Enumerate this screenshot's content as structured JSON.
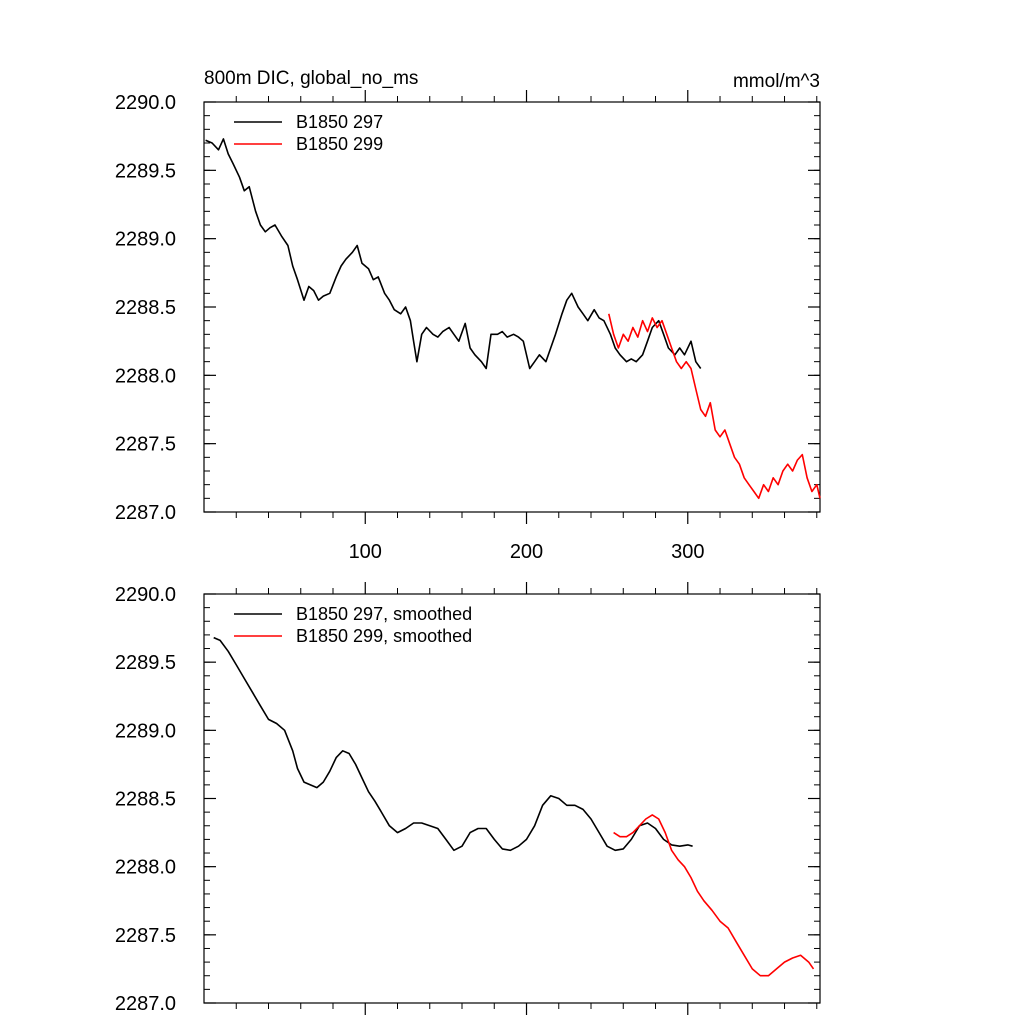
{
  "header": {
    "title": "800m DIC, global_no_ms",
    "units": "mmol/m^3"
  },
  "colors": {
    "run_297": "#000000",
    "run_299": "#ff0000"
  },
  "chart_data": [
    {
      "type": "line",
      "title": "800m DIC, global_no_ms",
      "units": "mmol/m^3",
      "xlabel": "",
      "ylabel": "",
      "xlim": [
        0,
        382
      ],
      "ylim": [
        2287.0,
        2290.0
      ],
      "x_ticks": [
        100,
        200,
        300
      ],
      "x_tick_labels": [
        "100",
        "200",
        "300"
      ],
      "y_ticks": [
        2287.0,
        2287.5,
        2288.0,
        2288.5,
        2289.0,
        2289.5,
        2290.0
      ],
      "y_tick_labels": [
        "2287.0",
        "2287.5",
        "2288.0",
        "2288.5",
        "2289.0",
        "2289.5",
        "2290.0"
      ],
      "legend": "top-left",
      "grid": false,
      "series": [
        {
          "name": "B1850 297",
          "color": "#000000",
          "x": [
            1,
            5,
            9,
            12,
            15,
            18,
            22,
            25,
            28,
            32,
            35,
            38,
            41,
            44,
            48,
            52,
            55,
            58,
            62,
            65,
            68,
            71,
            74,
            78,
            82,
            85,
            88,
            92,
            95,
            98,
            102,
            105,
            108,
            112,
            115,
            118,
            122,
            125,
            128,
            130,
            132,
            135,
            138,
            142,
            145,
            148,
            152,
            155,
            158,
            162,
            165,
            168,
            172,
            175,
            178,
            182,
            185,
            188,
            192,
            195,
            198,
            202,
            205,
            208,
            212,
            215,
            218,
            222,
            225,
            228,
            232,
            235,
            238,
            242,
            245,
            248,
            252,
            255,
            258,
            262,
            265,
            268,
            272,
            275,
            278,
            282,
            285,
            288,
            292,
            295,
            298,
            302,
            305,
            308
          ],
          "y": [
            2289.72,
            2289.7,
            2289.65,
            2289.73,
            2289.62,
            2289.55,
            2289.45,
            2289.35,
            2289.38,
            2289.2,
            2289.1,
            2289.05,
            2289.08,
            2289.1,
            2289.02,
            2288.95,
            2288.8,
            2288.7,
            2288.55,
            2288.65,
            2288.62,
            2288.55,
            2288.58,
            2288.6,
            2288.72,
            2288.8,
            2288.85,
            2288.9,
            2288.95,
            2288.82,
            2288.78,
            2288.7,
            2288.72,
            2288.6,
            2288.55,
            2288.48,
            2288.45,
            2288.5,
            2288.4,
            2288.25,
            2288.1,
            2288.3,
            2288.35,
            2288.3,
            2288.28,
            2288.32,
            2288.35,
            2288.3,
            2288.25,
            2288.38,
            2288.2,
            2288.15,
            2288.1,
            2288.05,
            2288.3,
            2288.3,
            2288.32,
            2288.28,
            2288.3,
            2288.28,
            2288.25,
            2288.05,
            2288.1,
            2288.15,
            2288.1,
            2288.2,
            2288.3,
            2288.45,
            2288.55,
            2288.6,
            2288.5,
            2288.45,
            2288.4,
            2288.48,
            2288.42,
            2288.4,
            2288.3,
            2288.2,
            2288.15,
            2288.1,
            2288.12,
            2288.1,
            2288.15,
            2288.25,
            2288.35,
            2288.4,
            2288.3,
            2288.2,
            2288.15,
            2288.2,
            2288.15,
            2288.25,
            2288.1,
            2288.05
          ]
        },
        {
          "name": "B1850 299",
          "color": "#ff0000",
          "x": [
            251,
            254,
            257,
            260,
            263,
            266,
            269,
            272,
            275,
            278,
            281,
            284,
            287,
            290,
            293,
            296,
            299,
            302,
            305,
            308,
            311,
            314,
            317,
            320,
            323,
            326,
            329,
            332,
            335,
            338,
            341,
            344,
            347,
            350,
            353,
            356,
            359,
            362,
            365,
            368,
            371,
            374,
            377,
            380,
            382
          ],
          "y": [
            2288.45,
            2288.3,
            2288.2,
            2288.3,
            2288.25,
            2288.35,
            2288.28,
            2288.4,
            2288.32,
            2288.42,
            2288.35,
            2288.4,
            2288.3,
            2288.2,
            2288.1,
            2288.05,
            2288.1,
            2288.05,
            2287.9,
            2287.75,
            2287.7,
            2287.8,
            2287.6,
            2287.55,
            2287.6,
            2287.5,
            2287.4,
            2287.35,
            2287.25,
            2287.2,
            2287.15,
            2287.1,
            2287.2,
            2287.15,
            2287.25,
            2287.2,
            2287.3,
            2287.35,
            2287.3,
            2287.38,
            2287.42,
            2287.25,
            2287.15,
            2287.2,
            2287.1
          ]
        }
      ]
    },
    {
      "type": "line",
      "title": "",
      "xlabel": "",
      "ylabel": "",
      "xlim": [
        0,
        382
      ],
      "ylim": [
        2287.0,
        2290.0
      ],
      "x_ticks": [
        100,
        200,
        300
      ],
      "x_tick_labels": [
        "",
        "",
        ""
      ],
      "y_ticks": [
        2287.0,
        2287.5,
        2288.0,
        2288.5,
        2289.0,
        2289.5,
        2290.0
      ],
      "y_tick_labels": [
        "2287.0",
        "2287.5",
        "2288.0",
        "2288.5",
        "2289.0",
        "2289.5",
        "2290.0"
      ],
      "legend": "top-left",
      "grid": false,
      "series": [
        {
          "name": "B1850 297, smoothed",
          "color": "#000000",
          "x": [
            6,
            10,
            15,
            20,
            25,
            30,
            35,
            40,
            45,
            50,
            55,
            58,
            62,
            66,
            70,
            74,
            78,
            82,
            86,
            90,
            94,
            98,
            102,
            106,
            110,
            115,
            120,
            125,
            130,
            135,
            140,
            145,
            150,
            155,
            160,
            165,
            170,
            175,
            180,
            185,
            190,
            195,
            200,
            205,
            210,
            215,
            220,
            225,
            230,
            235,
            240,
            245,
            250,
            255,
            260,
            265,
            270,
            275,
            280,
            285,
            290,
            295,
            300,
            303
          ],
          "y": [
            2289.68,
            2289.66,
            2289.58,
            2289.48,
            2289.38,
            2289.28,
            2289.18,
            2289.08,
            2289.05,
            2289.0,
            2288.85,
            2288.72,
            2288.62,
            2288.6,
            2288.58,
            2288.62,
            2288.7,
            2288.8,
            2288.85,
            2288.83,
            2288.75,
            2288.65,
            2288.55,
            2288.48,
            2288.4,
            2288.3,
            2288.25,
            2288.28,
            2288.32,
            2288.32,
            2288.3,
            2288.28,
            2288.2,
            2288.12,
            2288.15,
            2288.25,
            2288.28,
            2288.28,
            2288.2,
            2288.13,
            2288.12,
            2288.15,
            2288.2,
            2288.3,
            2288.45,
            2288.52,
            2288.5,
            2288.45,
            2288.45,
            2288.42,
            2288.35,
            2288.25,
            2288.15,
            2288.12,
            2288.13,
            2288.2,
            2288.3,
            2288.32,
            2288.28,
            2288.2,
            2288.16,
            2288.15,
            2288.16,
            2288.15
          ]
        },
        {
          "name": "B1850 299, smoothed",
          "color": "#ff0000",
          "x": [
            254,
            258,
            262,
            266,
            270,
            274,
            278,
            282,
            286,
            290,
            294,
            298,
            302,
            306,
            310,
            315,
            320,
            325,
            330,
            335,
            340,
            345,
            350,
            355,
            360,
            365,
            370,
            375,
            378
          ],
          "y": [
            2288.25,
            2288.22,
            2288.22,
            2288.25,
            2288.3,
            2288.35,
            2288.38,
            2288.35,
            2288.25,
            2288.12,
            2288.05,
            2288.0,
            2287.92,
            2287.82,
            2287.75,
            2287.68,
            2287.6,
            2287.55,
            2287.45,
            2287.35,
            2287.25,
            2287.2,
            2287.2,
            2287.25,
            2287.3,
            2287.33,
            2287.35,
            2287.3,
            2287.25
          ]
        }
      ]
    }
  ]
}
